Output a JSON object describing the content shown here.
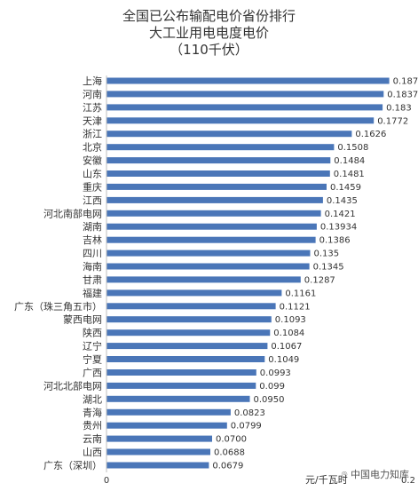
{
  "chart_data": {
    "type": "bar",
    "orientation": "horizontal",
    "title": [
      "全国已公布输配电价省份排行",
      "大工业用电电度电价",
      "（110千伏）"
    ],
    "categories": [
      "上海",
      "河南",
      "江苏",
      "天津",
      "浙江",
      "北京",
      "安徽",
      "山东",
      "重庆",
      "江西",
      "河北南部电网",
      "湖南",
      "吉林",
      "四川",
      "海南",
      "甘肃",
      "福建",
      "广东（珠三角五市）",
      "蒙西电网",
      "陕西",
      "辽宁",
      "宁夏",
      "广西",
      "河北北部电网",
      "湖北",
      "青海",
      "贵州",
      "云南",
      "山西",
      "广东（深圳）"
    ],
    "values": [
      0.1874,
      0.1837,
      0.183,
      0.1772,
      0.1626,
      0.1508,
      0.1484,
      0.1481,
      0.1459,
      0.1435,
      0.1421,
      0.13934,
      0.1386,
      0.135,
      0.1345,
      0.1287,
      0.1161,
      0.1121,
      0.1093,
      0.1084,
      0.1067,
      0.1049,
      0.0993,
      0.099,
      0.095,
      0.0823,
      0.0799,
      0.07,
      0.0688,
      0.0679
    ],
    "value_labels": [
      "0.1874",
      "0.1837",
      "0.183",
      "0.1772",
      "0.1626",
      "0.1508",
      "0.1484",
      "0.1481",
      "0.1459",
      "0.1435",
      "0.1421",
      "0.13934",
      "0.1386",
      "0.135",
      "0.1345",
      "0.1287",
      "0.1161",
      "0.1121",
      "0.1093",
      "0.1084",
      "0.1067",
      "0.1049",
      "0.0993",
      "0.099",
      "0.0950",
      "0.0823",
      "0.0799",
      "0.0700",
      "0.0688",
      "0.0679"
    ],
    "xlim": [
      0,
      0.2
    ],
    "x_ticks": [
      "0",
      "0.2"
    ],
    "xlabel": "元/千瓦时",
    "ylabel": "",
    "grid": false,
    "bar_color": "#4a76b8",
    "text_color": "#333333"
  },
  "watermark": "中国电力知库"
}
